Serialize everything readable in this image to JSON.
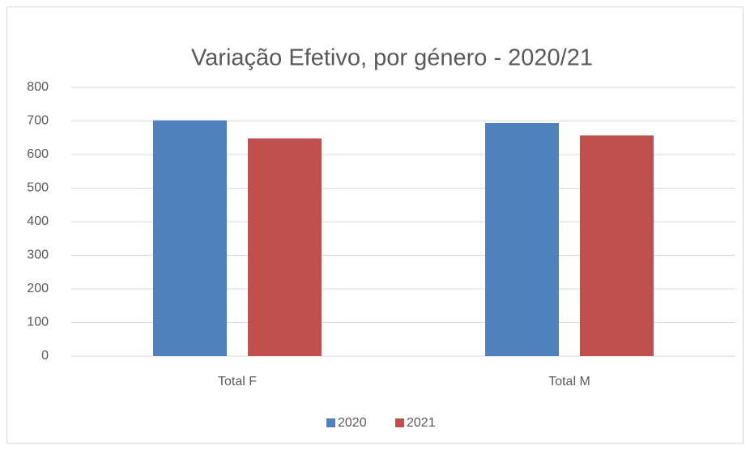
{
  "chart_data": {
    "type": "bar",
    "title": "Variação Efetivo, por género - 2020/21",
    "categories": [
      "Total F",
      "Total M"
    ],
    "series": [
      {
        "name": "2020",
        "color": "#4f81bd",
        "values": [
          702,
          694
        ]
      },
      {
        "name": "2021",
        "color": "#c0504d",
        "values": [
          648,
          657
        ]
      }
    ],
    "ylim": [
      0,
      800
    ],
    "yticks": [
      0,
      100,
      200,
      300,
      400,
      500,
      600,
      700,
      800
    ],
    "grid": true,
    "legend": "bottom"
  }
}
